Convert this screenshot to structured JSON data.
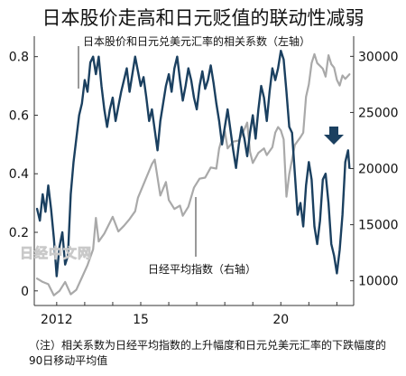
{
  "chart_data": {
    "type": "line",
    "title": "日本股价走高和日元贬值的联动性减弱",
    "watermark": "日经中文网",
    "x_ticks": [
      "2012",
      "15",
      "20"
    ],
    "x_range": [
      2011.2,
      2022.6
    ],
    "left_axis": {
      "ticks": [
        "0",
        "0.2",
        "0.4",
        "0.6",
        "0.8"
      ],
      "range": [
        -0.05,
        0.87
      ]
    },
    "right_axis": {
      "ticks": [
        "10000",
        "15000",
        "20000",
        "25000",
        "30000"
      ],
      "range": [
        7800,
        31800
      ]
    },
    "series": [
      {
        "name": "日本股价和日元兑美元汇率的相关系数（左轴）",
        "axis": "left",
        "color": "#1b4060",
        "points": [
          [
            2011.3,
            0.28
          ],
          [
            2011.4,
            0.24
          ],
          [
            2011.5,
            0.33
          ],
          [
            2011.6,
            0.27
          ],
          [
            2011.7,
            0.36
          ],
          [
            2011.8,
            0.28
          ],
          [
            2011.9,
            0.18
          ],
          [
            2012.0,
            0.05
          ],
          [
            2012.1,
            0.15
          ],
          [
            2012.2,
            0.2
          ],
          [
            2012.3,
            0.09
          ],
          [
            2012.4,
            0.12
          ],
          [
            2012.5,
            0.33
          ],
          [
            2012.6,
            0.44
          ],
          [
            2012.7,
            0.52
          ],
          [
            2012.8,
            0.6
          ],
          [
            2012.9,
            0.64
          ],
          [
            2013.0,
            0.72
          ],
          [
            2013.1,
            0.68
          ],
          [
            2013.2,
            0.78
          ],
          [
            2013.3,
            0.8
          ],
          [
            2013.4,
            0.74
          ],
          [
            2013.5,
            0.8
          ],
          [
            2013.6,
            0.7
          ],
          [
            2013.7,
            0.62
          ],
          [
            2013.8,
            0.56
          ],
          [
            2013.9,
            0.62
          ],
          [
            2014.0,
            0.66
          ],
          [
            2014.1,
            0.58
          ],
          [
            2014.2,
            0.63
          ],
          [
            2014.3,
            0.68
          ],
          [
            2014.4,
            0.72
          ],
          [
            2014.5,
            0.76
          ],
          [
            2014.6,
            0.68
          ],
          [
            2014.7,
            0.74
          ],
          [
            2014.8,
            0.8
          ],
          [
            2014.9,
            0.75
          ],
          [
            2015.0,
            0.7
          ],
          [
            2015.1,
            0.73
          ],
          [
            2015.2,
            0.66
          ],
          [
            2015.3,
            0.58
          ],
          [
            2015.4,
            0.62
          ],
          [
            2015.5,
            0.55
          ],
          [
            2015.6,
            0.48
          ],
          [
            2015.7,
            0.58
          ],
          [
            2015.8,
            0.64
          ],
          [
            2015.9,
            0.7
          ],
          [
            2016.0,
            0.74
          ],
          [
            2016.1,
            0.68
          ],
          [
            2016.2,
            0.76
          ],
          [
            2016.3,
            0.8
          ],
          [
            2016.4,
            0.72
          ],
          [
            2016.5,
            0.65
          ],
          [
            2016.6,
            0.7
          ],
          [
            2016.7,
            0.76
          ],
          [
            2016.8,
            0.72
          ],
          [
            2016.9,
            0.66
          ],
          [
            2017.0,
            0.62
          ],
          [
            2017.1,
            0.7
          ],
          [
            2017.2,
            0.75
          ],
          [
            2017.3,
            0.69
          ],
          [
            2017.4,
            0.72
          ],
          [
            2017.5,
            0.77
          ],
          [
            2017.6,
            0.71
          ],
          [
            2017.7,
            0.64
          ],
          [
            2017.8,
            0.58
          ],
          [
            2017.9,
            0.5
          ],
          [
            2018.0,
            0.56
          ],
          [
            2018.1,
            0.62
          ],
          [
            2018.2,
            0.55
          ],
          [
            2018.3,
            0.48
          ],
          [
            2018.4,
            0.42
          ],
          [
            2018.5,
            0.5
          ],
          [
            2018.6,
            0.56
          ],
          [
            2018.7,
            0.52
          ],
          [
            2018.8,
            0.46
          ],
          [
            2018.9,
            0.54
          ],
          [
            2019.0,
            0.6
          ],
          [
            2019.1,
            0.52
          ],
          [
            2019.2,
            0.62
          ],
          [
            2019.3,
            0.7
          ],
          [
            2019.4,
            0.66
          ],
          [
            2019.5,
            0.58
          ],
          [
            2019.6,
            0.68
          ],
          [
            2019.7,
            0.76
          ],
          [
            2019.8,
            0.72
          ],
          [
            2019.9,
            0.76
          ],
          [
            2020.0,
            0.82
          ],
          [
            2020.1,
            0.79
          ],
          [
            2020.2,
            0.68
          ],
          [
            2020.3,
            0.56
          ],
          [
            2020.4,
            0.54
          ],
          [
            2020.5,
            0.4
          ],
          [
            2020.6,
            0.26
          ],
          [
            2020.7,
            0.3
          ],
          [
            2020.8,
            0.22
          ],
          [
            2020.9,
            0.36
          ],
          [
            2021.0,
            0.44
          ],
          [
            2021.1,
            0.38
          ],
          [
            2021.2,
            0.22
          ],
          [
            2021.3,
            0.16
          ],
          [
            2021.4,
            0.24
          ],
          [
            2021.5,
            0.38
          ],
          [
            2021.6,
            0.4
          ],
          [
            2021.7,
            0.3
          ],
          [
            2021.8,
            0.16
          ],
          [
            2021.9,
            0.12
          ],
          [
            2022.0,
            0.06
          ],
          [
            2022.1,
            0.14
          ],
          [
            2022.2,
            0.26
          ],
          [
            2022.3,
            0.44
          ],
          [
            2022.4,
            0.48
          ],
          [
            2022.45,
            0.42
          ]
        ]
      },
      {
        "name": "日经平均指数（右轴）",
        "axis": "right",
        "color": "#a9a9a9",
        "points": [
          [
            2011.3,
            10200
          ],
          [
            2011.5,
            9900
          ],
          [
            2011.7,
            9700
          ],
          [
            2011.9,
            8700
          ],
          [
            2012.1,
            9100
          ],
          [
            2012.3,
            9900
          ],
          [
            2012.5,
            8800
          ],
          [
            2012.7,
            9200
          ],
          [
            2012.9,
            10300
          ],
          [
            2013.1,
            11400
          ],
          [
            2013.3,
            12800
          ],
          [
            2013.4,
            15600
          ],
          [
            2013.5,
            13500
          ],
          [
            2013.7,
            14200
          ],
          [
            2013.9,
            15200
          ],
          [
            2014.0,
            15700
          ],
          [
            2014.2,
            14400
          ],
          [
            2014.4,
            14900
          ],
          [
            2014.6,
            15500
          ],
          [
            2014.8,
            16200
          ],
          [
            2014.9,
            17400
          ],
          [
            2015.1,
            18600
          ],
          [
            2015.3,
            19800
          ],
          [
            2015.4,
            20400
          ],
          [
            2015.5,
            20800
          ],
          [
            2015.6,
            19200
          ],
          [
            2015.7,
            17600
          ],
          [
            2015.9,
            18800
          ],
          [
            2016.0,
            17200
          ],
          [
            2016.2,
            16400
          ],
          [
            2016.4,
            16700
          ],
          [
            2016.5,
            15800
          ],
          [
            2016.7,
            16600
          ],
          [
            2016.9,
            18300
          ],
          [
            2017.1,
            19100
          ],
          [
            2017.3,
            19200
          ],
          [
            2017.5,
            20100
          ],
          [
            2017.7,
            20000
          ],
          [
            2017.8,
            21800
          ],
          [
            2017.9,
            22700
          ],
          [
            2018.0,
            23300
          ],
          [
            2018.1,
            21800
          ],
          [
            2018.3,
            22400
          ],
          [
            2018.5,
            22500
          ],
          [
            2018.7,
            23500
          ],
          [
            2018.8,
            24100
          ],
          [
            2018.9,
            21500
          ],
          [
            2019.0,
            20500
          ],
          [
            2019.2,
            21400
          ],
          [
            2019.4,
            21800
          ],
          [
            2019.5,
            21200
          ],
          [
            2019.7,
            21900
          ],
          [
            2019.8,
            23200
          ],
          [
            2019.9,
            23700
          ],
          [
            2020.0,
            23400
          ],
          [
            2020.1,
            22600
          ],
          [
            2020.2,
            17500
          ],
          [
            2020.3,
            19500
          ],
          [
            2020.5,
            22100
          ],
          [
            2020.7,
            22800
          ],
          [
            2020.8,
            23200
          ],
          [
            2020.9,
            26400
          ],
          [
            2021.0,
            27500
          ],
          [
            2021.1,
            29400
          ],
          [
            2021.2,
            30200
          ],
          [
            2021.3,
            29400
          ],
          [
            2021.5,
            28900
          ],
          [
            2021.6,
            28200
          ],
          [
            2021.7,
            30100
          ],
          [
            2021.8,
            29300
          ],
          [
            2021.9,
            29000
          ],
          [
            2022.0,
            27900
          ],
          [
            2022.1,
            27400
          ],
          [
            2022.2,
            28300
          ],
          [
            2022.3,
            28000
          ],
          [
            2022.45,
            28400
          ]
        ]
      }
    ],
    "annotations": [
      {
        "text": "日本股价和日元兑美元汇率的相关系数（左轴）",
        "target": "correlation"
      },
      {
        "text": "日经平均指数（右轴）",
        "target": "nikkei"
      }
    ],
    "arrow": {
      "direction": "down",
      "color": "#1b4060"
    }
  },
  "note": "（注）相关系数为日经平均指数的上升幅度和日元兑美元汇率的下跌幅度的90日移动平均值"
}
